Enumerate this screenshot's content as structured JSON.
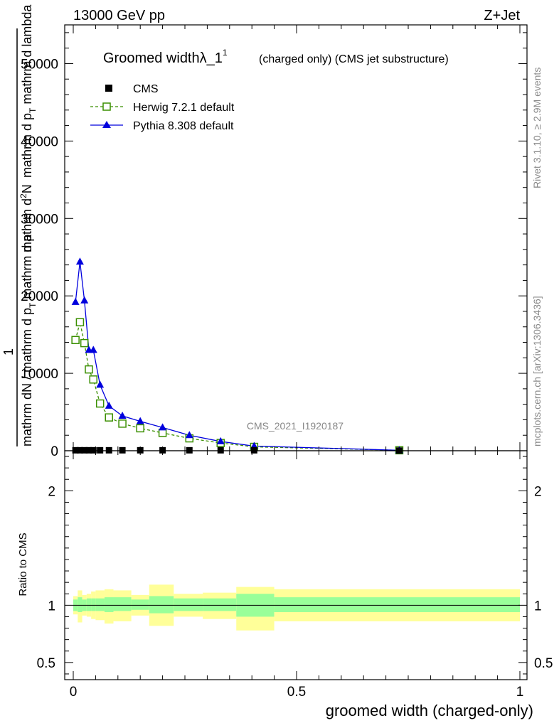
{
  "header": {
    "energy": "13000 GeV pp",
    "process": "Z+Jet"
  },
  "plot_title": {
    "main": "Groomed width",
    "lambda": "λ_1",
    "sup": "1",
    "tail": "(charged only) (CMS jet substructure)"
  },
  "side": {
    "rivet": "Rivet 3.1.10, ≥ 2.9M events",
    "mcplots": "mcplots.cern.ch [arXiv:1306.3436]"
  },
  "watermark": "CMS_2021_I1920187",
  "ylabel_upper": {
    "one": "1",
    "num": "mathrm d²N",
    "den": "mathrm dN / mathrm d p",
    "sub_t": "T",
    "den2": "mathrm d p",
    "sub_t2": "T",
    "den3": "mathrm d lambda",
    "line_num_prefix": "mathrm d",
    "line_num_sup": "2",
    "line_num_suffix": "N",
    "line_den_a": "mathrm d p",
    "line_den_b": " mathrm d lambda",
    "line_left_a": "mathrm dN / mathrm d p",
    "line_left_b": " mathrm d p",
    "line_left_c": "mathrm d p"
  },
  "ylabel_lower": "Ratio to CMS",
  "xlabel": "groomed width (charged-only)",
  "colors": {
    "cms": "#000000",
    "herwig": "#3a8f00",
    "pythia": "#0000dd",
    "band_outer": "#ffff99",
    "band_inner": "#99ff99"
  },
  "chart_data": [
    {
      "type": "line",
      "panel": "main",
      "xlim": [
        0,
        1
      ],
      "ylim": [
        0,
        55000
      ],
      "yticks": [
        0,
        10000,
        20000,
        30000,
        40000,
        50000
      ],
      "ytick_labels": [
        "0",
        "10000",
        "20000",
        "30000",
        "40000",
        "50000"
      ],
      "legend_placement": "top-left",
      "series": [
        {
          "name": "CMS",
          "marker": "square-filled",
          "x": [
            0.005,
            0.015,
            0.025,
            0.035,
            0.045,
            0.06,
            0.08,
            0.11,
            0.15,
            0.2,
            0.26,
            0.33,
            0.405,
            0.73
          ],
          "y": [
            60,
            60,
            60,
            60,
            60,
            60,
            60,
            60,
            60,
            60,
            60,
            60,
            60,
            20
          ]
        },
        {
          "name": "Herwig 7.2.1 default",
          "marker": "square-open",
          "dashed": true,
          "x": [
            0.005,
            0.015,
            0.025,
            0.035,
            0.045,
            0.06,
            0.08,
            0.11,
            0.15,
            0.2,
            0.26,
            0.33,
            0.405,
            0.73
          ],
          "y": [
            14300,
            16600,
            13900,
            10500,
            9200,
            6100,
            4300,
            3500,
            2900,
            2300,
            1600,
            1000,
            500,
            60
          ]
        },
        {
          "name": "Pythia 8.308 default",
          "marker": "triangle-filled",
          "dashed": false,
          "x": [
            0.005,
            0.015,
            0.025,
            0.035,
            0.045,
            0.06,
            0.08,
            0.11,
            0.15,
            0.2,
            0.26,
            0.33,
            0.405,
            0.73
          ],
          "y": [
            19200,
            24400,
            19400,
            13000,
            13000,
            8500,
            5800,
            4500,
            3800,
            3000,
            2000,
            1200,
            600,
            60
          ]
        }
      ]
    },
    {
      "type": "area",
      "panel": "ratio",
      "xlim": [
        0,
        1
      ],
      "ylim": [
        0.35,
        2.35
      ],
      "yticks": [
        0.5,
        1,
        2
      ],
      "ytick_labels": [
        "0.5",
        "1",
        "2"
      ],
      "xticks": [
        0,
        0.5,
        1
      ],
      "xtick_labels": [
        "0",
        "0.5",
        "1"
      ],
      "bins": [
        {
          "lo": 0.0,
          "hi": 0.01,
          "inner": [
            0.95,
            1.05
          ],
          "outer": [
            0.92,
            1.08
          ]
        },
        {
          "lo": 0.01,
          "hi": 0.02,
          "inner": [
            0.94,
            1.07
          ],
          "outer": [
            0.85,
            1.13
          ]
        },
        {
          "lo": 0.02,
          "hi": 0.03,
          "inner": [
            0.95,
            1.05
          ],
          "outer": [
            0.91,
            1.09
          ]
        },
        {
          "lo": 0.03,
          "hi": 0.04,
          "inner": [
            0.95,
            1.06
          ],
          "outer": [
            0.9,
            1.1
          ]
        },
        {
          "lo": 0.04,
          "hi": 0.05,
          "inner": [
            0.95,
            1.06
          ],
          "outer": [
            0.88,
            1.12
          ]
        },
        {
          "lo": 0.05,
          "hi": 0.07,
          "inner": [
            0.95,
            1.06
          ],
          "outer": [
            0.87,
            1.13
          ]
        },
        {
          "lo": 0.07,
          "hi": 0.09,
          "inner": [
            0.94,
            1.07
          ],
          "outer": [
            0.84,
            1.14
          ]
        },
        {
          "lo": 0.09,
          "hi": 0.13,
          "inner": [
            0.95,
            1.07
          ],
          "outer": [
            0.86,
            1.13
          ]
        },
        {
          "lo": 0.13,
          "hi": 0.17,
          "inner": [
            0.96,
            1.05
          ],
          "outer": [
            0.91,
            1.09
          ]
        },
        {
          "lo": 0.17,
          "hi": 0.225,
          "inner": [
            0.93,
            1.08
          ],
          "outer": [
            0.82,
            1.18
          ]
        },
        {
          "lo": 0.225,
          "hi": 0.29,
          "inner": [
            0.95,
            1.06
          ],
          "outer": [
            0.9,
            1.1
          ]
        },
        {
          "lo": 0.29,
          "hi": 0.365,
          "inner": [
            0.95,
            1.06
          ],
          "outer": [
            0.88,
            1.11
          ]
        },
        {
          "lo": 0.365,
          "hi": 0.45,
          "inner": [
            0.9,
            1.1
          ],
          "outer": [
            0.78,
            1.16
          ]
        },
        {
          "lo": 0.45,
          "hi": 1.0,
          "inner": [
            0.94,
            1.07
          ],
          "outer": [
            0.86,
            1.14
          ]
        }
      ]
    }
  ]
}
